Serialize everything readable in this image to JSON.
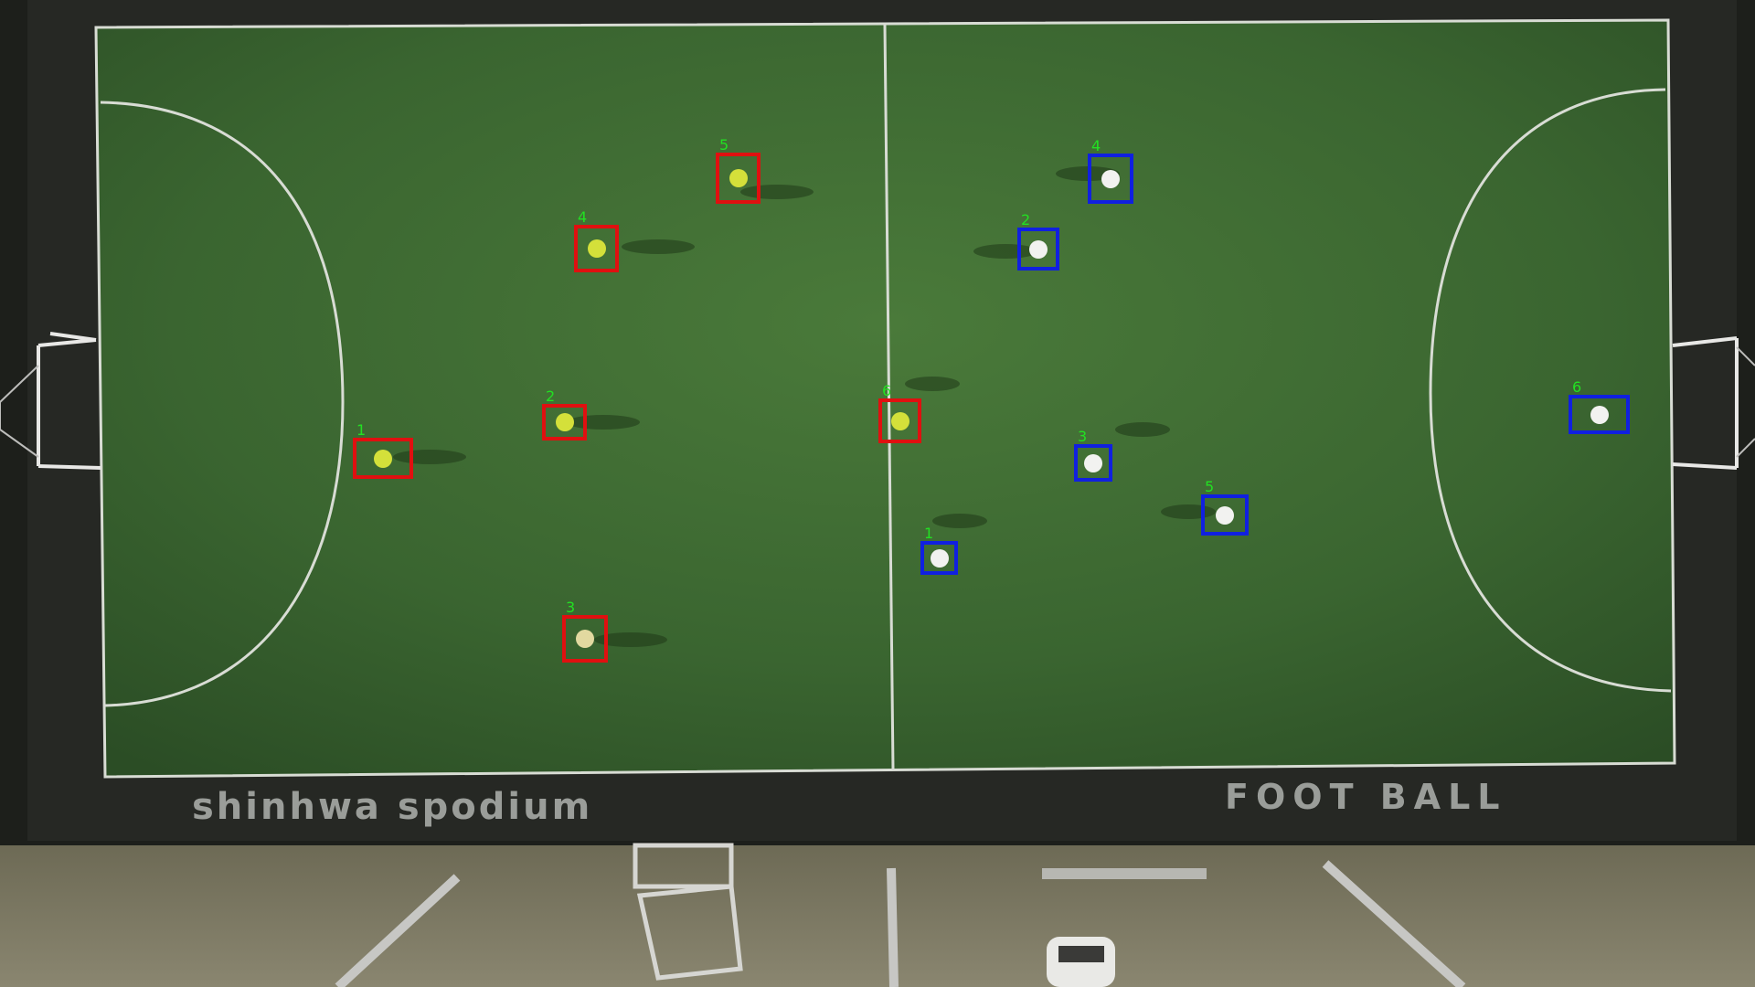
{
  "colors": {
    "team_left_box": "#e01010",
    "team_right_box": "#1020e0",
    "label": "#22e022",
    "pitch": "#3f6d33",
    "line": "#d8dcd4",
    "surround": "#22231f"
  },
  "signage": {
    "left": "shinhwa spodium",
    "right": "FOOT BALL"
  },
  "team_left": {
    "players": [
      {
        "id": "1"
      },
      {
        "id": "2"
      },
      {
        "id": "3"
      },
      {
        "id": "4"
      },
      {
        "id": "5"
      },
      {
        "id": "6"
      }
    ]
  },
  "team_right": {
    "players": [
      {
        "id": "1"
      },
      {
        "id": "2"
      },
      {
        "id": "3"
      },
      {
        "id": "4"
      },
      {
        "id": "5"
      },
      {
        "id": "6"
      }
    ]
  }
}
